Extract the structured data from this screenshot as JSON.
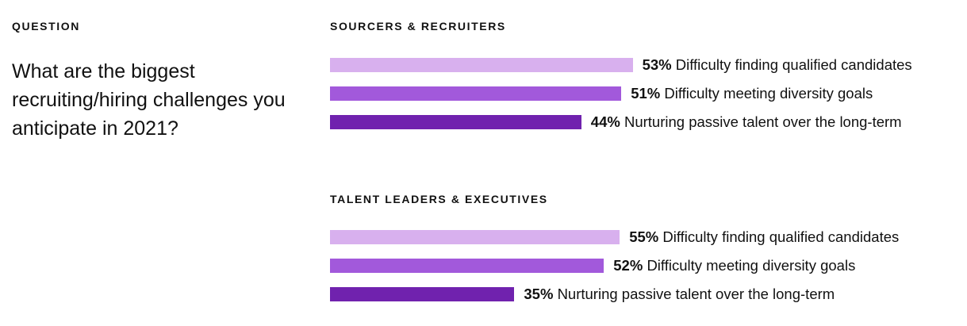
{
  "question_label": "QUESTION",
  "question": "What are the biggest recruiting/hiring challenges you anticipate in 2021?",
  "colors": [
    "#D8B0EE",
    "#A259DB",
    "#7022AE"
  ],
  "chart_data": [
    {
      "type": "bar",
      "orientation": "horizontal",
      "title": "SOURCERS & RECRUITERS",
      "categories": [
        "Difficulty finding qualified candidates",
        "Difficulty meeting diversity goals",
        "Nurturing passive talent over the long-term"
      ],
      "values": [
        53,
        51,
        44
      ],
      "value_labels": [
        "53%",
        "51%",
        "44%"
      ]
    },
    {
      "type": "bar",
      "orientation": "horizontal",
      "title": "TALENT LEADERS & EXECUTIVES",
      "categories": [
        "Difficulty finding qualified candidates",
        "Difficulty meeting diversity goals",
        "Nurturing passive talent over the long-term"
      ],
      "values": [
        55,
        52,
        35
      ],
      "value_labels": [
        "55%",
        "52%",
        "35%"
      ]
    }
  ]
}
